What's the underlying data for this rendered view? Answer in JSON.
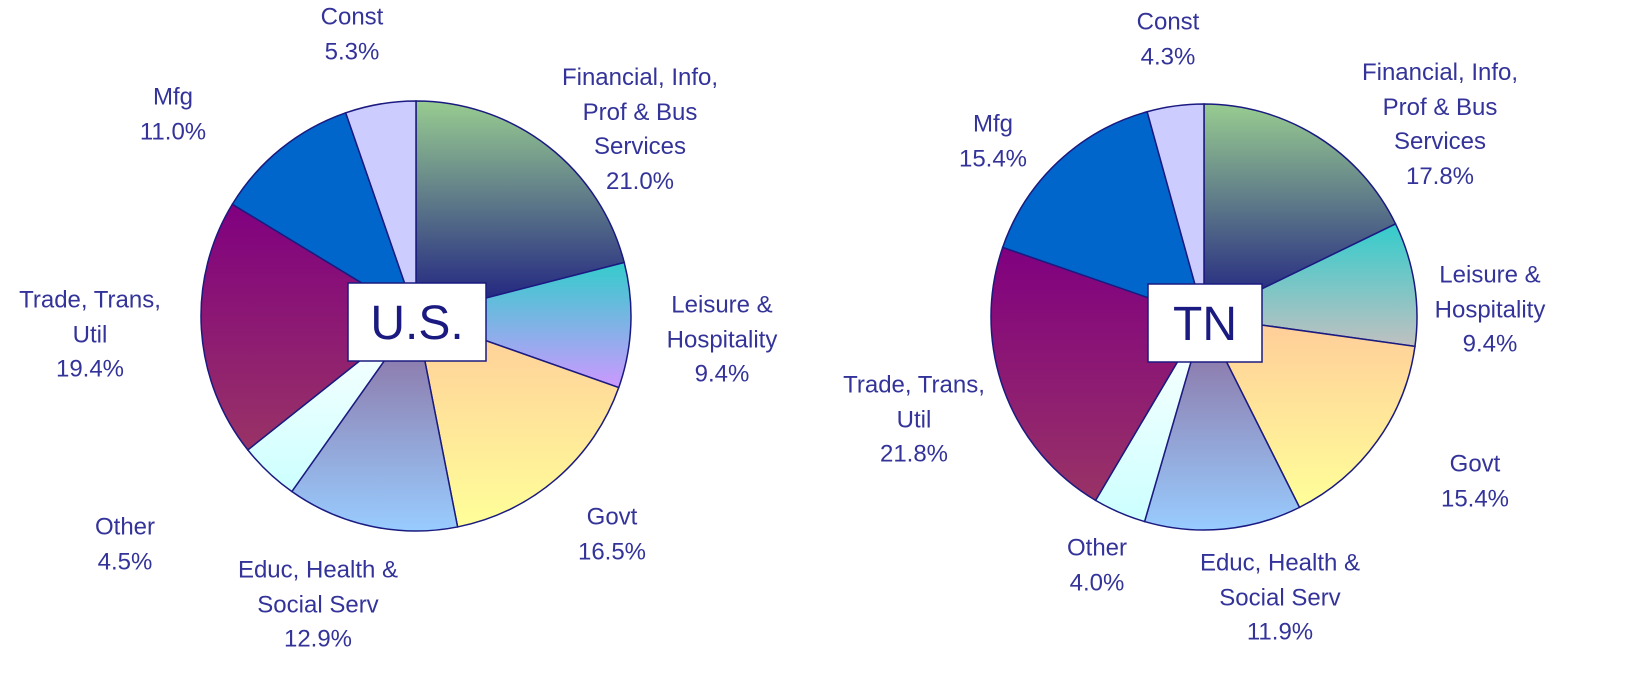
{
  "chart_data": [
    {
      "type": "pie",
      "title": "U.S.",
      "categories": [
        "Financial, Info, Prof & Bus Services",
        "Leisure & Hospitality",
        "Govt",
        "Educ, Health & Social Serv",
        "Other",
        "Trade, Trans, Util",
        "Mfg",
        "Const"
      ],
      "values": [
        21.0,
        9.4,
        16.5,
        12.9,
        4.5,
        19.4,
        11.0,
        5.3
      ],
      "value_labels": [
        "21.0%",
        "9.4%",
        "16.5%",
        "12.9%",
        "4.5%",
        "19.4%",
        "11.0%",
        "5.3%"
      ],
      "colors": [
        [
          "#98cc90",
          "#1a1a80"
        ],
        [
          "#33cccc",
          "#cc99ff"
        ],
        [
          "#ffcc99",
          "#ffff99"
        ],
        [
          "#8a6a9a",
          "#99ccff"
        ],
        [
          "#ffffff",
          "#ccffff"
        ],
        [
          "#800080",
          "#993366"
        ],
        [
          "#0066cc",
          "#0066cc"
        ],
        [
          "#ccccff",
          "#ccccff"
        ]
      ]
    },
    {
      "type": "pie",
      "title": "TN",
      "categories": [
        "Financial, Info, Prof & Bus Services",
        "Leisure & Hospitality",
        "Govt",
        "Educ, Health & Social Serv",
        "Other",
        "Trade, Trans, Util",
        "Mfg",
        "Const"
      ],
      "values": [
        17.8,
        9.4,
        15.4,
        11.9,
        4.0,
        21.8,
        15.4,
        4.3
      ],
      "value_labels": [
        "17.8%",
        "9.4%",
        "15.4%",
        "11.9%",
        "4.0%",
        "21.8%",
        "15.4%",
        "4.3%"
      ],
      "colors": [
        [
          "#98cc90",
          "#1a1a80"
        ],
        [
          "#33cccc",
          "#c0c0c0"
        ],
        [
          "#ffcc99",
          "#ffff99"
        ],
        [
          "#8a6a9a",
          "#99ccff"
        ],
        [
          "#ffffff",
          "#ccffff"
        ],
        [
          "#800080",
          "#993366"
        ],
        [
          "#0066cc",
          "#0066cc"
        ],
        [
          "#ccccff",
          "#ccccff"
        ]
      ]
    }
  ]
}
